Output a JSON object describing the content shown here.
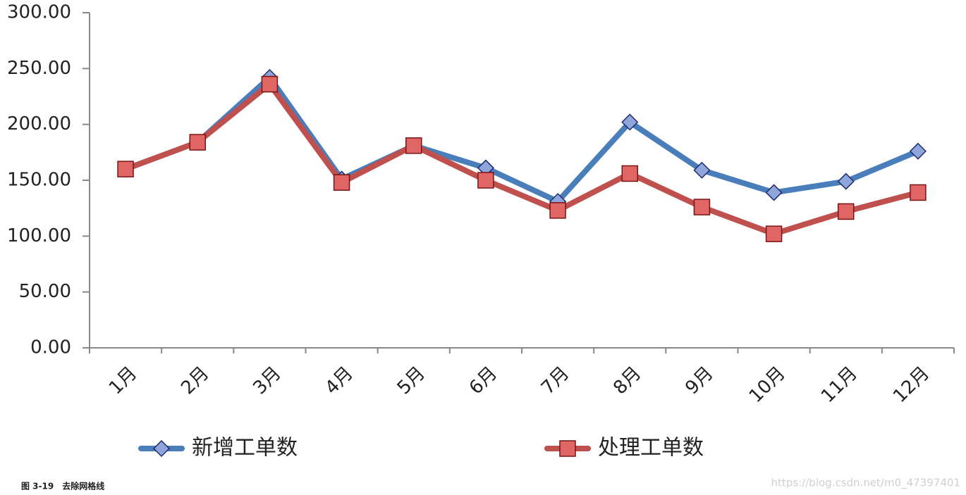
{
  "chart_data": {
    "type": "line",
    "categories": [
      "1月",
      "2月",
      "3月",
      "4月",
      "5月",
      "6月",
      "7月",
      "8月",
      "9月",
      "10月",
      "11月",
      "12月"
    ],
    "series": [
      {
        "name": "新增工单数",
        "color": "#4a7ebb",
        "marker": "diamond",
        "marker_color": "#8ea6dc",
        "values": [
          160,
          184,
          242,
          151,
          181,
          161,
          131,
          202,
          159,
          139,
          149,
          176
        ]
      },
      {
        "name": "处理工单数",
        "color": "#c0504d",
        "marker": "square",
        "marker_color": "#e06666",
        "values": [
          160,
          184,
          236,
          148,
          181,
          150,
          123,
          156,
          126,
          102,
          122,
          139
        ]
      }
    ],
    "ylim": [
      0,
      300
    ],
    "yticks": [
      {
        "value": 0,
        "label": "0.00"
      },
      {
        "value": 50,
        "label": "50.00"
      },
      {
        "value": 100,
        "label": "100.00"
      },
      {
        "value": 150,
        "label": "150.00"
      },
      {
        "value": 200,
        "label": "200.00"
      },
      {
        "value": 250,
        "label": "250.00"
      },
      {
        "value": 300,
        "label": "300.00"
      }
    ],
    "grid": false,
    "legend": "bottom"
  },
  "caption": "图 3-19　去除网格线",
  "watermark": "https://blog.csdn.net/m0_47397401"
}
